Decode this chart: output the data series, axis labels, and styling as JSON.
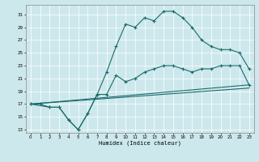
{
  "xlabel": "Humidex (Indice chaleur)",
  "xlim": [
    -0.5,
    23.5
  ],
  "ylim": [
    12.5,
    32.5
  ],
  "yticks": [
    13,
    15,
    17,
    19,
    21,
    23,
    25,
    27,
    29,
    31
  ],
  "xticks": [
    0,
    1,
    2,
    3,
    4,
    5,
    6,
    7,
    8,
    9,
    10,
    11,
    12,
    13,
    14,
    15,
    16,
    17,
    18,
    19,
    20,
    21,
    22,
    23
  ],
  "bg_color": "#cde8ec",
  "grid_color": "#b0d0d8",
  "line_color": "#1a6b6b",
  "line1_x": [
    0,
    1,
    2,
    3,
    4,
    5,
    6,
    7,
    8,
    9,
    10,
    11,
    12,
    13,
    14,
    15,
    16,
    17,
    18,
    19,
    20,
    21,
    22,
    23
  ],
  "line1_y": [
    17,
    17,
    16.5,
    16.5,
    14.5,
    13,
    15.5,
    18.5,
    22,
    26,
    29.5,
    29,
    30.5,
    30,
    31.5,
    31.5,
    30.5,
    29,
    27,
    26,
    25.5,
    25.5,
    25,
    22.5
  ],
  "line2_x": [
    0,
    2,
    3,
    4,
    5,
    6,
    7,
    8,
    9,
    10,
    11,
    12,
    13,
    14,
    15,
    16,
    17,
    18,
    19,
    20,
    21,
    22,
    23
  ],
  "line2_y": [
    17,
    16.5,
    16.5,
    14.5,
    13,
    15.5,
    18.5,
    18.5,
    21.5,
    20.5,
    21,
    22,
    22.5,
    23,
    23,
    22.5,
    22,
    22.5,
    22.5,
    23,
    23,
    23,
    20
  ],
  "line3_x": [
    0,
    23
  ],
  "line3_y": [
    17,
    20
  ],
  "line4_x": [
    0,
    23
  ],
  "line4_y": [
    17,
    19.5
  ]
}
